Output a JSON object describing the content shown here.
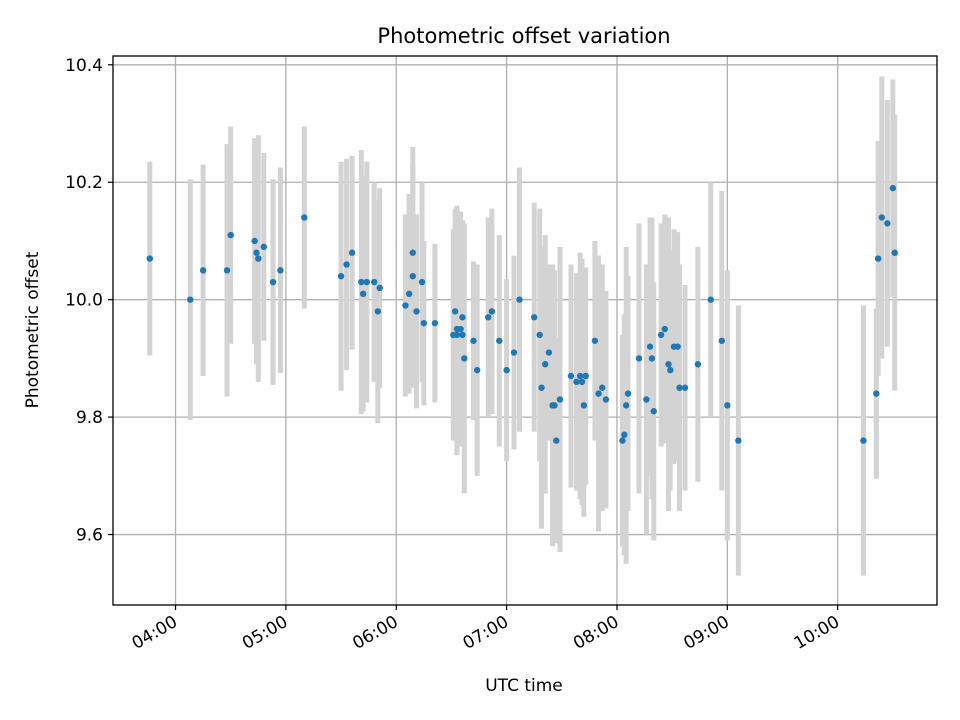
{
  "chart_data": {
    "type": "scatter",
    "title": "Photometric offset variation",
    "xlabel": "UTC time",
    "ylabel": "Photometric offset",
    "xlim": [
      "03:26",
      "10:54"
    ],
    "ylim": [
      9.48,
      10.415
    ],
    "grid": true,
    "x_ticks": [
      "04:00",
      "05:00",
      "06:00",
      "07:00",
      "08:00",
      "09:00",
      "10:00"
    ],
    "y_ticks": [
      "9.6",
      "9.8",
      "10.0",
      "10.2",
      "10.4"
    ],
    "colors": {
      "point": "#1f77b4",
      "errorbar": "#d3d3d3",
      "grid": "#b0b0b0"
    },
    "series": [
      {
        "x": [
          "03:46",
          "04:08",
          "04:15",
          "04:28",
          "04:30",
          "04:43",
          "04:44",
          "04:45",
          "04:48",
          "04:53",
          "04:57",
          "05:10",
          "05:30",
          "05:33",
          "05:36",
          "05:41",
          "05:42",
          "05:44",
          "05:48",
          "05:50",
          "05:51",
          "06:05",
          "06:07",
          "06:09",
          "06:09",
          "06:11",
          "06:14",
          "06:15",
          "06:21",
          "06:31",
          "06:32",
          "06:33",
          "06:33",
          "06:35",
          "06:36",
          "06:36",
          "06:37",
          "06:42",
          "06:44",
          "06:50",
          "06:52",
          "06:56",
          "07:00",
          "07:04",
          "07:07",
          "07:15",
          "07:18",
          "07:19",
          "07:21",
          "07:23",
          "07:25",
          "07:26",
          "07:27",
          "07:29",
          "07:35",
          "07:38",
          "07:40",
          "07:41",
          "07:42",
          "07:43",
          "07:48",
          "07:50",
          "07:52",
          "07:54",
          "08:03",
          "08:04",
          "08:05",
          "08:06",
          "08:12",
          "08:16",
          "08:18",
          "08:19",
          "08:20",
          "08:24",
          "08:26",
          "08:28",
          "08:29",
          "08:31",
          "08:33",
          "08:34",
          "08:37",
          "08:44",
          "08:51",
          "08:57",
          "09:00",
          "09:06",
          "10:14",
          "10:21",
          "10:22",
          "10:24",
          "10:27",
          "10:30",
          "10:31"
        ],
        "y": [
          10.07,
          10.0,
          10.05,
          10.05,
          10.11,
          10.1,
          10.08,
          10.07,
          10.09,
          10.03,
          10.05,
          10.14,
          10.04,
          10.06,
          10.08,
          10.03,
          10.01,
          10.03,
          10.03,
          9.98,
          10.02,
          9.99,
          10.01,
          10.08,
          10.04,
          9.98,
          10.03,
          9.96,
          9.96,
          9.94,
          9.98,
          9.95,
          9.94,
          9.95,
          9.94,
          9.97,
          9.9,
          9.93,
          9.88,
          9.97,
          9.98,
          9.93,
          9.88,
          9.91,
          10.0,
          9.97,
          9.94,
          9.85,
          9.89,
          9.91,
          9.82,
          9.82,
          9.76,
          9.83,
          9.87,
          9.86,
          9.87,
          9.86,
          9.82,
          9.87,
          9.93,
          9.84,
          9.85,
          9.83,
          9.76,
          9.77,
          9.82,
          9.84,
          9.9,
          9.83,
          9.92,
          9.9,
          9.81,
          9.94,
          9.95,
          9.89,
          9.88,
          9.92,
          9.92,
          9.85,
          9.85,
          9.89,
          10.0,
          9.93,
          9.82,
          9.76,
          9.76,
          9.84,
          10.07,
          10.14,
          10.13,
          10.19,
          10.08
        ],
        "yerr": [
          0.165,
          0.205,
          0.18,
          0.215,
          0.185,
          0.175,
          0.19,
          0.21,
          0.16,
          0.175,
          0.175,
          0.155,
          0.195,
          0.18,
          0.165,
          0.225,
          0.2,
          0.205,
          0.17,
          0.19,
          0.17,
          0.155,
          0.17,
          0.18,
          0.19,
          0.165,
          0.17,
          0.14,
          0.135,
          0.18,
          0.175,
          0.21,
          0.205,
          0.2,
          0.175,
          0.165,
          0.23,
          0.135,
          0.18,
          0.17,
          0.175,
          0.18,
          0.155,
          0.165,
          0.225,
          0.195,
          0.215,
          0.24,
          0.22,
          0.15,
          0.24,
          0.23,
          0.175,
          0.26,
          0.19,
          0.185,
          0.21,
          0.21,
          0.19,
          0.185,
          0.17,
          0.235,
          0.21,
          0.185,
          0.18,
          0.205,
          0.27,
          0.2,
          0.23,
          0.23,
          0.22,
          0.24,
          0.22,
          0.19,
          0.195,
          0.25,
          0.205,
          0.2,
          0.195,
          0.21,
          0.175,
          0.2,
          0.2,
          0.255,
          0.23,
          0.23,
          0.23,
          0.145,
          0.2,
          0.24,
          0.21,
          0.185,
          0.235
        ]
      }
    ]
  }
}
